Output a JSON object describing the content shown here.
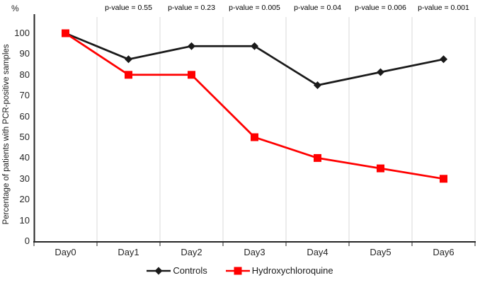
{
  "chart_data": {
    "type": "line",
    "title": "",
    "y_unit_label": "%",
    "ylabel": "Percentage of patients with PCR-positive samples",
    "xlabel": "",
    "categories": [
      "Day0",
      "Day1",
      "Day2",
      "Day3",
      "Day4",
      "Day5",
      "Day6"
    ],
    "ylim": [
      0,
      100
    ],
    "ytick_step": 10,
    "grid": "vertical-category-separators",
    "legend_position": "bottom-center",
    "series": [
      {
        "name": "Controls",
        "marker": "diamond",
        "color": "#1a1a1a",
        "values": [
          100,
          87.5,
          93.8,
          93.8,
          75,
          81.3,
          87.5
        ]
      },
      {
        "name": "Hydroxychloroquine",
        "marker": "square",
        "color": "#ff0000",
        "values": [
          100,
          80,
          80,
          50,
          40,
          35,
          30
        ]
      }
    ],
    "annotations": {
      "start_category_index": 1,
      "labels": [
        "p-value = 0.55",
        "p-value = 0.23",
        "p-value = 0.005",
        "p-value = 0.04",
        "p-value = 0.006",
        "p-value = 0.001"
      ]
    }
  },
  "colors": {
    "background": "#ffffff",
    "axis": "#262626",
    "gridline": "#d9d9d9",
    "tick_text": "#262626",
    "annotation_text": "#000000"
  }
}
